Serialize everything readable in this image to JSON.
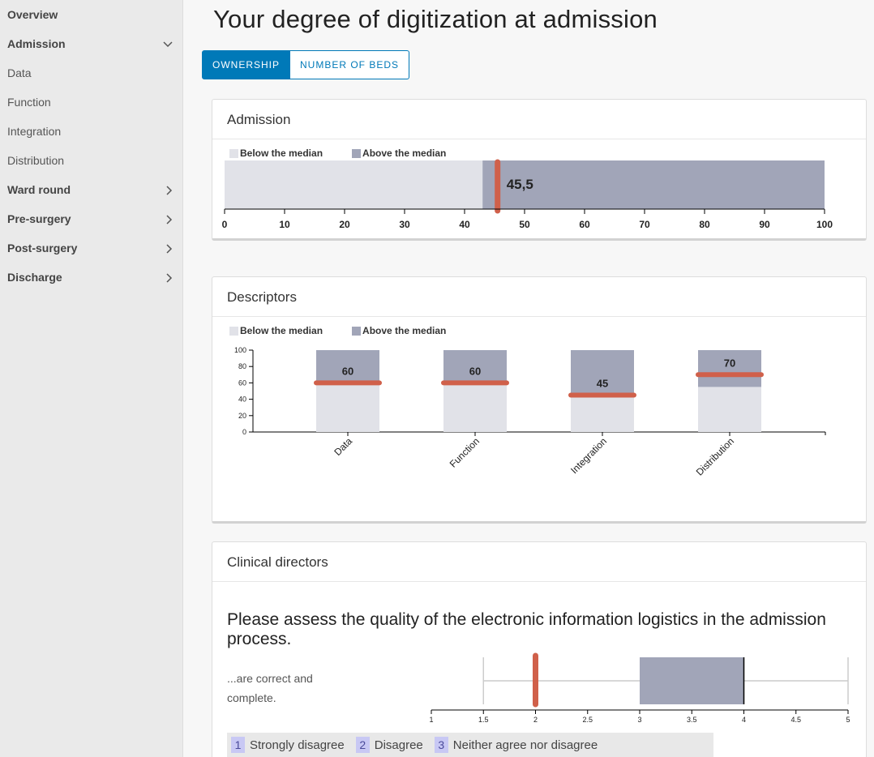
{
  "sidebar": {
    "items": [
      {
        "label": "Overview",
        "bold": true,
        "chevron": "none"
      },
      {
        "label": "Admission",
        "bold": true,
        "chevron": "down"
      },
      {
        "label": "Data",
        "bold": false,
        "chevron": "none"
      },
      {
        "label": "Function",
        "bold": false,
        "chevron": "none"
      },
      {
        "label": "Integration",
        "bold": false,
        "chevron": "none"
      },
      {
        "label": "Distribution",
        "bold": false,
        "chevron": "none"
      },
      {
        "label": "Ward round",
        "bold": true,
        "chevron": "right"
      },
      {
        "label": "Pre-surgery",
        "bold": true,
        "chevron": "right"
      },
      {
        "label": "Post-surgery",
        "bold": true,
        "chevron": "right"
      },
      {
        "label": "Discharge",
        "bold": true,
        "chevron": "right"
      }
    ]
  },
  "page": {
    "title": "Your degree of digitization at admission"
  },
  "toggle": {
    "ownership_label": "OWNERSHIP",
    "beds_label": "NUMBER OF BEDS"
  },
  "colors": {
    "accent": "#0079b8",
    "below_median": "#e1e2e8",
    "above_median": "#a1a5b8",
    "marker": "#d0604a"
  },
  "admission_card": {
    "title": "Admission",
    "legend_below": "Below the median",
    "legend_above": "Above the median"
  },
  "descriptors_card": {
    "title": "Descriptors",
    "legend_below": "Below the median",
    "legend_above": "Above the median"
  },
  "clinical_card": {
    "title": "Clinical directors",
    "question": "Please assess the quality of the electronic information logistics in the admission process.",
    "row_label": "...are correct and complete.",
    "scale": [
      {
        "num": "1",
        "label": "Strongly disagree"
      },
      {
        "num": "2",
        "label": "Disagree"
      },
      {
        "num": "3",
        "label": "Neither agree nor disagree"
      }
    ]
  },
  "chart_data": [
    {
      "type": "bar",
      "orientation": "horizontal",
      "median": 43,
      "value": 45.5,
      "value_label": "45,5",
      "xlim": [
        0,
        100
      ],
      "ticks": [
        0,
        10,
        20,
        30,
        40,
        50,
        60,
        70,
        80,
        90,
        100
      ]
    },
    {
      "type": "bar",
      "categories": [
        "Data",
        "Function",
        "Integration",
        "Distribution"
      ],
      "medians": [
        60,
        60,
        45,
        55
      ],
      "values": [
        60,
        60,
        45,
        70
      ],
      "value_labels": [
        "60",
        "60",
        "45",
        "70"
      ],
      "ylim": [
        0,
        100
      ],
      "yticks": [
        0,
        20,
        40,
        60,
        80,
        100
      ]
    },
    {
      "type": "boxplot",
      "xlim": [
        1,
        5
      ],
      "ticks": [
        1,
        1.5,
        2,
        2.5,
        3,
        3.5,
        4,
        4.5,
        5
      ],
      "whisker_low": 1.5,
      "q1": 3,
      "median": 4,
      "q3": 4,
      "whisker_high": 5,
      "value": 2
    }
  ]
}
